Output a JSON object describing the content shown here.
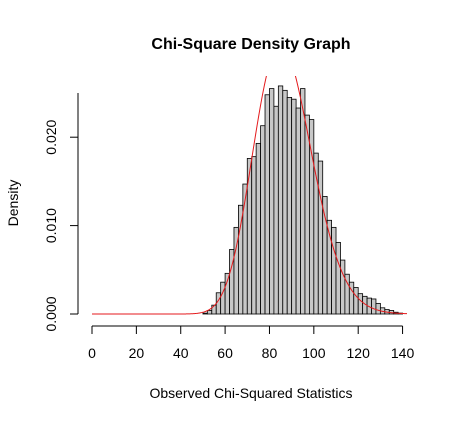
{
  "chart_data": {
    "type": "bar",
    "title": "Chi-Square Density Graph",
    "xlabel": "Observed Chi-Squared Statistics",
    "ylabel": "Density",
    "xlim": [
      0,
      142
    ],
    "ylim": [
      0,
      0.025
    ],
    "x_ticks": [
      0,
      20,
      40,
      60,
      80,
      100,
      120,
      140
    ],
    "x_tick_labels": [
      "0",
      "20",
      "40",
      "60",
      "80",
      "100",
      "120",
      "140"
    ],
    "y_ticks": [
      0.0,
      0.01,
      0.02
    ],
    "y_tick_labels": [
      "0.000",
      "0.010",
      "0.020"
    ],
    "grid": false,
    "bin_width": 2,
    "bins_start": [
      50,
      52,
      54,
      56,
      58,
      60,
      62,
      64,
      66,
      68,
      70,
      72,
      74,
      76,
      78,
      80,
      82,
      84,
      86,
      88,
      90,
      92,
      94,
      96,
      98,
      100,
      102,
      104,
      106,
      108,
      110,
      112,
      114,
      116,
      118,
      120,
      122,
      124,
      126,
      128,
      130,
      132,
      134,
      136,
      138,
      140
    ],
    "density": [
      0.0001,
      0.0004,
      0.001,
      0.0024,
      0.0036,
      0.0046,
      0.0073,
      0.0098,
      0.0123,
      0.0147,
      0.0176,
      0.0178,
      0.0193,
      0.0213,
      0.0248,
      0.0255,
      0.0235,
      0.0258,
      0.0253,
      0.0245,
      0.0243,
      0.0233,
      0.0255,
      0.0225,
      0.022,
      0.0182,
      0.0173,
      0.0133,
      0.0106,
      0.0098,
      0.0081,
      0.0061,
      0.0045,
      0.0036,
      0.003,
      0.0023,
      0.002,
      0.0018,
      0.0017,
      0.0012,
      0.0007,
      0.0005,
      0.0004,
      0.0002,
      0.0001,
      0.0
    ],
    "bar_color": "#c8c8c8",
    "bar_border": "#000000",
    "curve": {
      "df": 87,
      "color": "#e41a1c"
    }
  }
}
